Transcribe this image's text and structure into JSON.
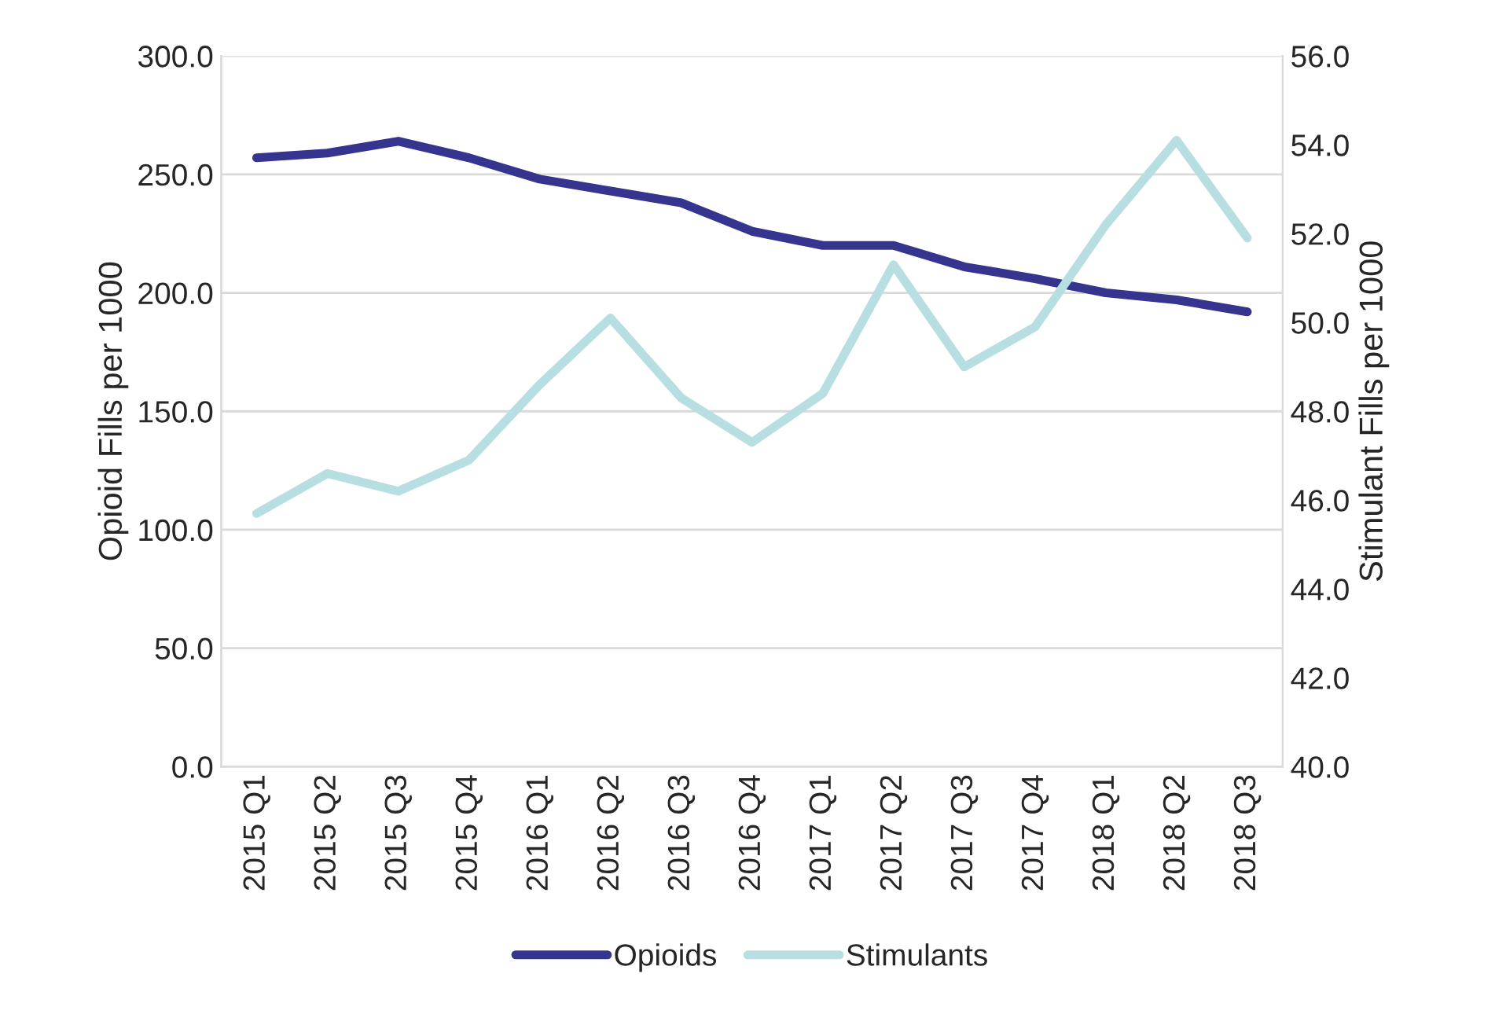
{
  "chart_data": {
    "type": "line",
    "ylabel": "Opioid Fills per 1000",
    "y2label": "Stimulant Fills per 1000",
    "categories": [
      "2015 Q1",
      "2015 Q2",
      "2015 Q3",
      "2015 Q4",
      "2016 Q1",
      "2016 Q2",
      "2016 Q3",
      "2016 Q4",
      "2017 Q1",
      "2017 Q2",
      "2017 Q3",
      "2017 Q4",
      "2018 Q1",
      "2018 Q2",
      "2018 Q3"
    ],
    "series": [
      {
        "name": "Opioids",
        "color": "#35348f",
        "values": [
          257,
          259,
          264,
          257,
          248,
          243,
          238,
          226,
          220,
          220,
          211,
          206,
          200,
          197,
          192
        ]
      },
      {
        "name": "Stimulants",
        "color": "#b7dfe1",
        "axis": "y2",
        "values": [
          45.7,
          46.6,
          46.2,
          46.9,
          48.6,
          50.1,
          48.3,
          47.3,
          48.4,
          51.3,
          49.0,
          49.9,
          52.2,
          54.1,
          51.9
        ]
      }
    ],
    "ylim": [
      0,
      300
    ],
    "yticks": [
      {
        "value": 0,
        "label": "0.0"
      },
      {
        "value": 50,
        "label": "50.0"
      },
      {
        "value": 100,
        "label": "100.0"
      },
      {
        "value": 150,
        "label": "150.0"
      },
      {
        "value": 200,
        "label": "200.0"
      },
      {
        "value": 250,
        "label": "250.0"
      },
      {
        "value": 300,
        "label": "300.0"
      }
    ],
    "y2lim": [
      40,
      56
    ],
    "y2ticks": [
      {
        "value": 40,
        "label": "40.0"
      },
      {
        "value": 42,
        "label": "42.0"
      },
      {
        "value": 44,
        "label": "44.0"
      },
      {
        "value": 46,
        "label": "46.0"
      },
      {
        "value": 48,
        "label": "48.0"
      },
      {
        "value": 50,
        "label": "50.0"
      },
      {
        "value": 52,
        "label": "52.0"
      },
      {
        "value": 54,
        "label": "54.0"
      },
      {
        "value": 56,
        "label": "56.0"
      }
    ],
    "grid": "y",
    "legend": "bottom",
    "marker": "none",
    "line_style": "solid"
  }
}
